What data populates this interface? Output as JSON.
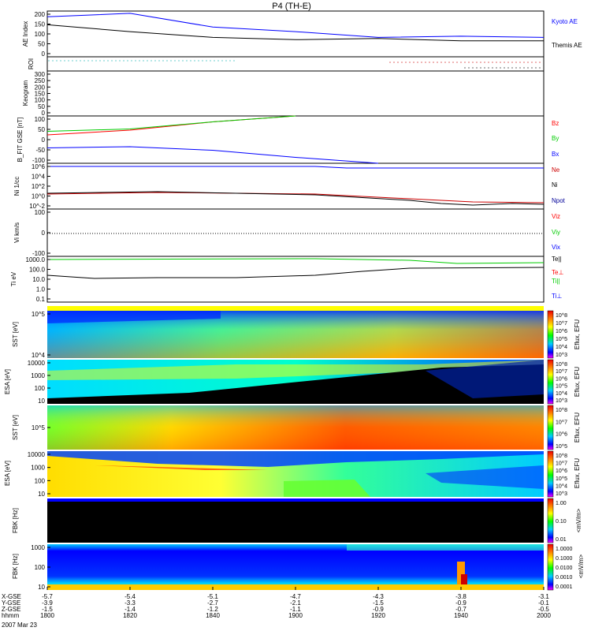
{
  "title": "P4 (TH-E)",
  "date_label": "2007 Mar 23",
  "colors": {
    "black": "#000000",
    "blue": "#0000ff",
    "red": "#ff0000",
    "green": "#00cc00",
    "orange": "#ff8800"
  },
  "chart_data": [
    {
      "type": "line",
      "panel": "ae",
      "ylabel": "AE Index",
      "ylim": [
        0,
        200
      ],
      "yticks": [
        "200",
        "150",
        "100",
        "50",
        "0"
      ],
      "x": [
        "1800",
        "1820",
        "1840",
        "1900",
        "1920",
        "1940",
        "2000"
      ],
      "series": [
        {
          "name": "Kyoto AE",
          "color": "#0000ff",
          "values": [
            175,
            190,
            130,
            110,
            85,
            90,
            85
          ]
        },
        {
          "name": "Themis AE",
          "color": "#000000",
          "values": [
            140,
            110,
            85,
            75,
            80,
            70,
            70
          ]
        }
      ]
    },
    {
      "type": "line",
      "panel": "roi",
      "ylabel": "ROI"
    },
    {
      "type": "heatmap",
      "panel": "keogram",
      "ylabel": "Keogram",
      "ylim": [
        0,
        300
      ],
      "yticks": [
        "300",
        "250",
        "200",
        "150",
        "100",
        "50",
        "0"
      ]
    },
    {
      "type": "line",
      "panel": "bfit",
      "ylabel": "B_FIT GSE [nT]",
      "ylim": [
        -100,
        100
      ],
      "yticks": [
        "100",
        "50",
        "0",
        "-50",
        "-100"
      ],
      "x": [
        "1800",
        "1820",
        "1840",
        "1900",
        "1920",
        "1940",
        "2000"
      ],
      "series": [
        {
          "name": "Bz",
          "color": "#ff0000",
          "values": [
            20,
            40,
            75,
            100,
            null,
            null,
            null
          ]
        },
        {
          "name": "By",
          "color": "#00cc00",
          "values": [
            35,
            45,
            75,
            100,
            null,
            null,
            null
          ]
        },
        {
          "name": "Bx",
          "color": "#0000ff",
          "values": [
            -35,
            -30,
            -45,
            -75,
            -100,
            null,
            null
          ]
        }
      ]
    },
    {
      "type": "line",
      "panel": "density",
      "ylabel": "Ni 1/cc",
      "yticks": [
        "10^6",
        "10^4",
        "10^2",
        "10^0",
        "10^-2"
      ],
      "labels": [
        "Ne",
        "Ni",
        "Npot"
      ]
    },
    {
      "type": "line",
      "panel": "velocity",
      "ylabel": "Vi km/s",
      "ylim": [
        -100,
        100
      ],
      "yticks": [
        "100",
        "0",
        "-100"
      ],
      "labels": [
        "Viz",
        "Viy",
        "Vix"
      ]
    },
    {
      "type": "line",
      "panel": "temp",
      "ylabel": "Ti eV",
      "yticks": [
        "1000.0",
        "100.0",
        "10.0",
        "1.0",
        "0.1"
      ],
      "labels": [
        "Te||",
        "Te⊥",
        "Ti||",
        "Ti⊥"
      ]
    },
    {
      "type": "heatmap",
      "panel": "sst_ion",
      "ylabel": "SST [eV]",
      "yticks": [
        "10^5",
        "10^4"
      ],
      "clabel": "Eflux, EFU",
      "cticks": [
        "10^8",
        "10^7",
        "10^6",
        "10^5",
        "10^4",
        "10^3"
      ]
    },
    {
      "type": "heatmap",
      "panel": "esa_ion",
      "ylabel": "ESA [eV]",
      "yticks": [
        "10000",
        "1000",
        "100",
        "10"
      ],
      "clabel": "Eflux, EFU",
      "cticks": [
        "10^8",
        "10^7",
        "10^6",
        "10^5",
        "10^4",
        "10^3"
      ]
    },
    {
      "type": "heatmap",
      "panel": "sst_e",
      "ylabel": "SST [eV]",
      "yticks": [
        "10^5"
      ],
      "clabel": "Eflux, EFU",
      "cticks": [
        "10^8",
        "10^7",
        "10^6",
        "10^5"
      ]
    },
    {
      "type": "heatmap",
      "panel": "esa_e",
      "ylabel": "ESA [eV]",
      "yticks": [
        "10000",
        "1000",
        "100",
        "10"
      ],
      "clabel": "Eflux, EFU",
      "cticks": [
        "10^8",
        "10^7",
        "10^6",
        "10^5",
        "10^4",
        "10^3"
      ]
    },
    {
      "type": "heatmap",
      "panel": "fbk_e",
      "ylabel": "FBK [Hz]",
      "yticks": [],
      "clabel": "<mV/m>",
      "cticks": [
        "1.00",
        "0.10",
        "0.01"
      ]
    },
    {
      "type": "heatmap",
      "panel": "fbk_b",
      "ylabel": "FBK [Hz]",
      "yticks": [
        "1000",
        "100",
        "10"
      ],
      "clabel": "<mV/m>",
      "cticks": [
        "1.0000",
        "0.1000",
        "0.0100",
        "0.0010",
        "0.0001"
      ]
    }
  ],
  "xaxis": {
    "rows": [
      "X-GSE",
      "Y-GSE",
      "Z-GSE",
      "hhmm"
    ],
    "cols": [
      [
        "-5.7",
        "-3.9",
        "-1.5",
        "1800"
      ],
      [
        "-5.4",
        "-3.3",
        "-1.4",
        "1820"
      ],
      [
        "-5.1",
        "-2.7",
        "-1.2",
        "1840"
      ],
      [
        "-4.7",
        "-2.1",
        "-1.1",
        "1900"
      ],
      [
        "-4.3",
        "-1.5",
        "-0.9",
        "1920"
      ],
      [
        "-3.8",
        "-0.9",
        "-0.7",
        "1940"
      ],
      [
        "-3.1",
        "-0.1",
        "-0.5",
        "2000"
      ]
    ]
  }
}
